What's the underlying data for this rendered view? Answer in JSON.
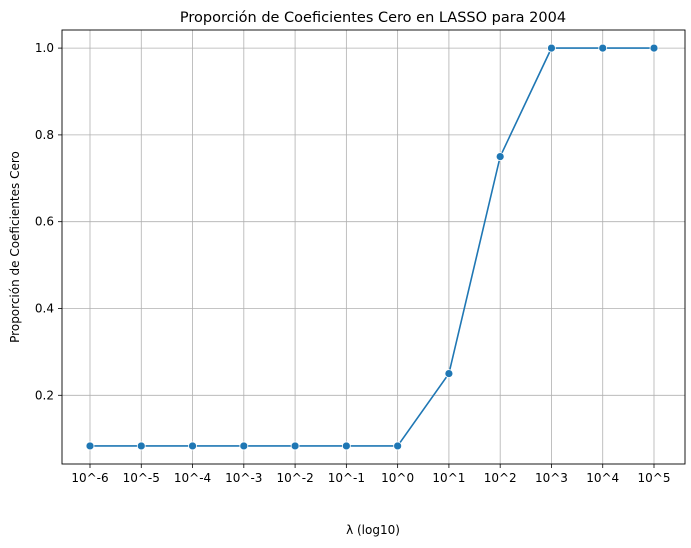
{
  "chart_data": {
    "type": "line",
    "title": "Proporción de Coeficientes Cero en LASSO para 2004",
    "xlabel": "λ (log10)",
    "ylabel": "Proporción de Coeficientes Cero",
    "categories": [
      "10^-6",
      "10^-5",
      "10^-4",
      "10^-3",
      "10^-2",
      "10^-1",
      "10^0",
      "10^1",
      "10^2",
      "10^3",
      "10^4",
      "10^5"
    ],
    "series": [
      {
        "values": [
          0.0833,
          0.0833,
          0.0833,
          0.0833,
          0.0833,
          0.0833,
          0.0833,
          0.25,
          0.75,
          1.0,
          1.0,
          1.0
        ]
      }
    ],
    "ylim": [
      0.0417,
      1.0417
    ],
    "yticks": [
      0.2,
      0.4,
      0.6,
      0.8,
      1.0
    ],
    "ytick_labels": [
      "0.2",
      "0.4",
      "0.6",
      "0.8",
      "1.0"
    ],
    "grid": true,
    "line_color": "#1f77b4",
    "marker": "circle"
  }
}
